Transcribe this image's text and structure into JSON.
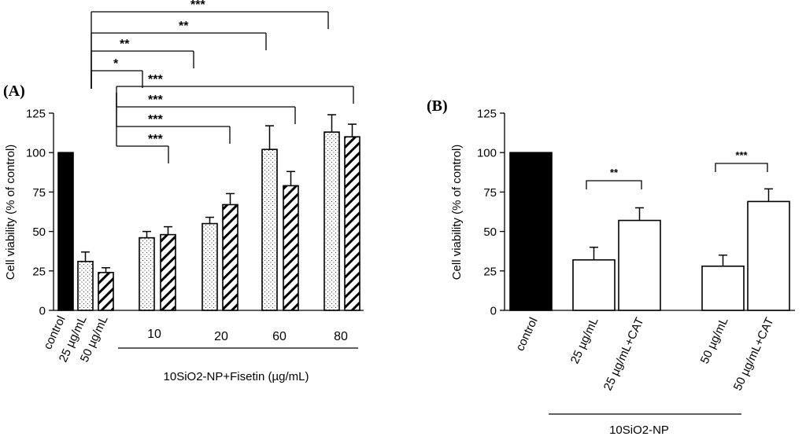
{
  "chart_data": [
    {
      "type": "bar",
      "panel_label": "(A)",
      "ylabel": "Cell viability (% of control)",
      "ylim": [
        0,
        125
      ],
      "yticks": [
        "0",
        "25",
        "50",
        "75",
        "100",
        "125"
      ],
      "categories": [
        "control",
        "25 µg/mL",
        "50 µg/mL",
        "10",
        "20",
        "60",
        "80"
      ],
      "group_caption": "10SiO2-NP+Fisetin (µg/mL)",
      "bars": [
        {
          "category": "control",
          "series": "control",
          "value": 100,
          "error": 0
        },
        {
          "category": "25 µg/mL",
          "series": "25 µg/mL",
          "value": 31,
          "error": 6
        },
        {
          "category": "50 µg/mL",
          "series": "50 µg/mL",
          "value": 24,
          "error": 3
        },
        {
          "category": "10",
          "series": "25 µg/mL",
          "value": 46,
          "error": 4
        },
        {
          "category": "10",
          "series": "50 µg/mL",
          "value": 48,
          "error": 5
        },
        {
          "category": "20",
          "series": "25 µg/mL",
          "value": 55,
          "error": 4
        },
        {
          "category": "20",
          "series": "50 µg/mL",
          "value": 67,
          "error": 7
        },
        {
          "category": "60",
          "series": "25 µg/mL",
          "value": 102,
          "error": 15
        },
        {
          "category": "60",
          "series": "50 µg/mL",
          "value": 79,
          "error": 9
        },
        {
          "category": "80",
          "series": "25 µg/mL",
          "value": 113,
          "error": 11
        },
        {
          "category": "80",
          "series": "50 µg/mL",
          "value": 110,
          "error": 8
        }
      ],
      "significance": [
        {
          "from": "25 µg/mL",
          "to": "10",
          "label": "*"
        },
        {
          "from": "25 µg/mL",
          "to": "20",
          "label": "**"
        },
        {
          "from": "25 µg/mL",
          "to": "60",
          "label": "**"
        },
        {
          "from": "25 µg/mL",
          "to": "80",
          "label": "***"
        },
        {
          "from": "50 µg/mL",
          "to": "10",
          "label": "***"
        },
        {
          "from": "50 µg/mL",
          "to": "20",
          "label": "***"
        },
        {
          "from": "50 µg/mL",
          "to": "60",
          "label": "***"
        },
        {
          "from": "50 µg/mL",
          "to": "80",
          "label": "***"
        }
      ]
    },
    {
      "type": "bar",
      "panel_label": "(B)",
      "ylabel": "Cell viability (% of control)",
      "ylim": [
        0,
        125
      ],
      "yticks": [
        "0",
        "25",
        "50",
        "75",
        "100",
        "125"
      ],
      "categories": [
        "control",
        "25 µg/mL",
        "25 µg/mL+CAT",
        "50 µg/mL",
        "50 µg/mL+CAT"
      ],
      "values": [
        100,
        32,
        57,
        28,
        69
      ],
      "errors": [
        0,
        8,
        8,
        7,
        8
      ],
      "group_caption": "10SiO2-NP",
      "significance": [
        {
          "from": "25 µg/mL",
          "to": "25 µg/mL+CAT",
          "label": "**"
        },
        {
          "from": "50 µg/mL",
          "to": "50 µg/mL+CAT",
          "label": "***"
        }
      ]
    }
  ],
  "palette": {
    "ink": "#000000",
    "paper": "#ffffff"
  }
}
